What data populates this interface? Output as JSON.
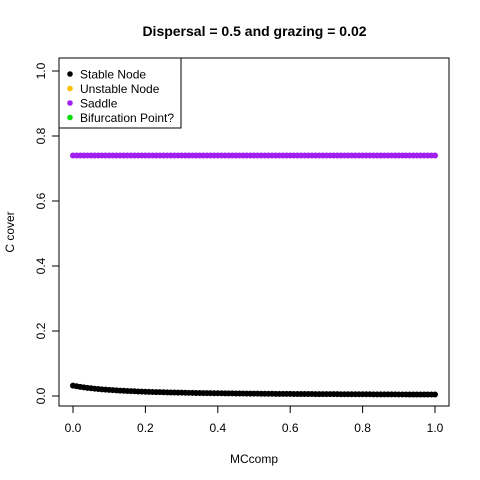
{
  "chart_data": {
    "type": "scatter",
    "title": "Dispersal =  0.5 and grazing = 0.02",
    "xlabel": "MCcomp",
    "ylabel": "C cover",
    "xlim": [
      0,
      1
    ],
    "ylim": [
      0,
      1
    ],
    "x_ticks": [
      "0.0",
      "0.2",
      "0.4",
      "0.6",
      "0.8",
      "1.0"
    ],
    "y_ticks": [
      "0.0",
      "0.2",
      "0.4",
      "0.6",
      "0.8",
      "1.0"
    ],
    "grid": false,
    "legend_position": "top-left",
    "legend": [
      {
        "label": "Stable Node",
        "color": "#000000"
      },
      {
        "label": "Unstable Node",
        "color": "#FFC000"
      },
      {
        "label": "Saddle",
        "color": "#A020F0"
      },
      {
        "label": "Bifurcation Point?",
        "color": "#00E000"
      }
    ],
    "series": [
      {
        "color": "#A020F0",
        "x_start": 0,
        "x_end": 1,
        "x_step": 0.01,
        "y": [
          0.74,
          0.74,
          0.74,
          0.74,
          0.74,
          0.74,
          0.74,
          0.74,
          0.74,
          0.74,
          0.74,
          0.74,
          0.74,
          0.74,
          0.74,
          0.74,
          0.74,
          0.74,
          0.74,
          0.74,
          0.74,
          0.74,
          0.74,
          0.74,
          0.74,
          0.74,
          0.74,
          0.74,
          0.74,
          0.74,
          0.74,
          0.74,
          0.74,
          0.74,
          0.74,
          0.74,
          0.74,
          0.74,
          0.74,
          0.74,
          0.74,
          0.74,
          0.74,
          0.74,
          0.74,
          0.74,
          0.74,
          0.74,
          0.74,
          0.74,
          0.74,
          0.74,
          0.74,
          0.74,
          0.74,
          0.74,
          0.74,
          0.74,
          0.74,
          0.74,
          0.74,
          0.74,
          0.74,
          0.74,
          0.74,
          0.74,
          0.74,
          0.74,
          0.74,
          0.74,
          0.74,
          0.74,
          0.74,
          0.74,
          0.74,
          0.74,
          0.74,
          0.74,
          0.74,
          0.74,
          0.74,
          0.74,
          0.74,
          0.74,
          0.74,
          0.74,
          0.74,
          0.74,
          0.74,
          0.74,
          0.74,
          0.74,
          0.74,
          0.74,
          0.74,
          0.74,
          0.74,
          0.74,
          0.74,
          0.74,
          0.74
        ]
      },
      {
        "color": "#000000",
        "x_start": 0,
        "x_end": 1,
        "x_step": 0.01,
        "y": [
          0.032,
          0.0299,
          0.0281,
          0.0265,
          0.025,
          0.0237,
          0.0225,
          0.0215,
          0.0205,
          0.0196,
          0.0188,
          0.018,
          0.0173,
          0.0167,
          0.0161,
          0.0155,
          0.015,
          0.0145,
          0.014,
          0.0136,
          0.0132,
          0.0128,
          0.0124,
          0.0121,
          0.0118,
          0.0115,
          0.0112,
          0.0109,
          0.0107,
          0.0104,
          0.0102,
          0.01,
          0.0098,
          0.0096,
          0.0094,
          0.0092,
          0.009,
          0.0089,
          0.0087,
          0.0086,
          0.0084,
          0.0083,
          0.0082,
          0.008,
          0.0079,
          0.0078,
          0.0077,
          0.0076,
          0.0075,
          0.0074,
          0.0073,
          0.0072,
          0.0071,
          0.007,
          0.0069,
          0.0068,
          0.0067,
          0.0066,
          0.0066,
          0.0065,
          0.0064,
          0.0063,
          0.0063,
          0.0062,
          0.0061,
          0.0061,
          0.006,
          0.0059,
          0.0059,
          0.0058,
          0.0058,
          0.0057,
          0.0057,
          0.0056,
          0.0055,
          0.0055,
          0.0054,
          0.0054,
          0.0054,
          0.0053,
          0.0053,
          0.0052,
          0.0052,
          0.0051,
          0.0051,
          0.005,
          0.005,
          0.005,
          0.0049,
          0.0049,
          0.0048,
          0.0048,
          0.0048,
          0.0047,
          0.0047,
          0.0047,
          0.0046,
          0.0046,
          0.0046,
          0.0045,
          0.0045
        ]
      }
    ]
  }
}
